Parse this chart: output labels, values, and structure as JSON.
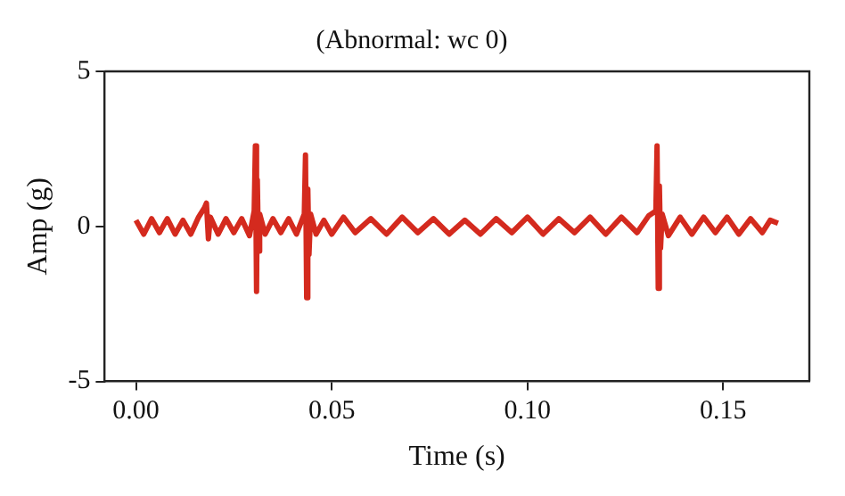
{
  "chart_data": {
    "type": "line",
    "title": "(Abnormal: wc 0)",
    "xlabel": "Time (s)",
    "ylabel": "Amp (g)",
    "xlim": [
      -0.008,
      0.172
    ],
    "ylim": [
      -5,
      5
    ],
    "xticks": [
      {
        "value": 0,
        "label": "0.00"
      },
      {
        "value": 0.05,
        "label": "0.05"
      },
      {
        "value": 0.1,
        "label": "0.10"
      },
      {
        "value": 0.15,
        "label": "0.15"
      }
    ],
    "yticks": [
      -5,
      0,
      5
    ],
    "grid": false,
    "legend": false,
    "marker": "none",
    "line_style": "solid",
    "series": [
      {
        "color": "#d42a1e",
        "x": [
          0,
          0.002,
          0.004,
          0.006,
          0.008,
          0.01,
          0.012,
          0.014,
          0.016,
          0.0175,
          0.018,
          0.0185,
          0.019,
          0.021,
          0.023,
          0.025,
          0.027,
          0.029,
          0.0302,
          0.0305,
          0.0308,
          0.031,
          0.0313,
          0.0316,
          0.033,
          0.035,
          0.037,
          0.039,
          0.041,
          0.043,
          0.0433,
          0.0436,
          0.0439,
          0.0442,
          0.0446,
          0.046,
          0.048,
          0.05,
          0.053,
          0.056,
          0.06,
          0.064,
          0.068,
          0.072,
          0.076,
          0.08,
          0.084,
          0.088,
          0.092,
          0.096,
          0.1,
          0.104,
          0.108,
          0.112,
          0.116,
          0.12,
          0.124,
          0.128,
          0.131,
          0.1328,
          0.1331,
          0.1334,
          0.1337,
          0.134,
          0.1344,
          0.136,
          0.139,
          0.142,
          0.145,
          0.148,
          0.151,
          0.154,
          0.157,
          0.16,
          0.162,
          0.164
        ],
        "values": [
          0.2,
          -0.25,
          0.25,
          -0.2,
          0.25,
          -0.25,
          0.2,
          -0.25,
          0.3,
          0.6,
          0.75,
          -0.4,
          0.3,
          -0.25,
          0.25,
          -0.2,
          0.25,
          -0.3,
          0.5,
          2.6,
          -2.1,
          1.5,
          -0.8,
          0.4,
          -0.25,
          0.25,
          -0.2,
          0.25,
          -0.25,
          0.4,
          2.3,
          -2.3,
          1.2,
          -0.9,
          0.4,
          -0.25,
          0.2,
          -0.25,
          0.3,
          -0.2,
          0.25,
          -0.25,
          0.3,
          -0.2,
          0.25,
          -0.25,
          0.2,
          -0.25,
          0.25,
          -0.2,
          0.3,
          -0.25,
          0.25,
          -0.2,
          0.3,
          -0.25,
          0.3,
          -0.2,
          0.35,
          0.5,
          2.6,
          -2.0,
          1.3,
          -0.7,
          0.4,
          -0.3,
          0.3,
          -0.25,
          0.3,
          -0.2,
          0.3,
          -0.25,
          0.25,
          -0.2,
          0.2,
          0.1
        ]
      }
    ]
  }
}
